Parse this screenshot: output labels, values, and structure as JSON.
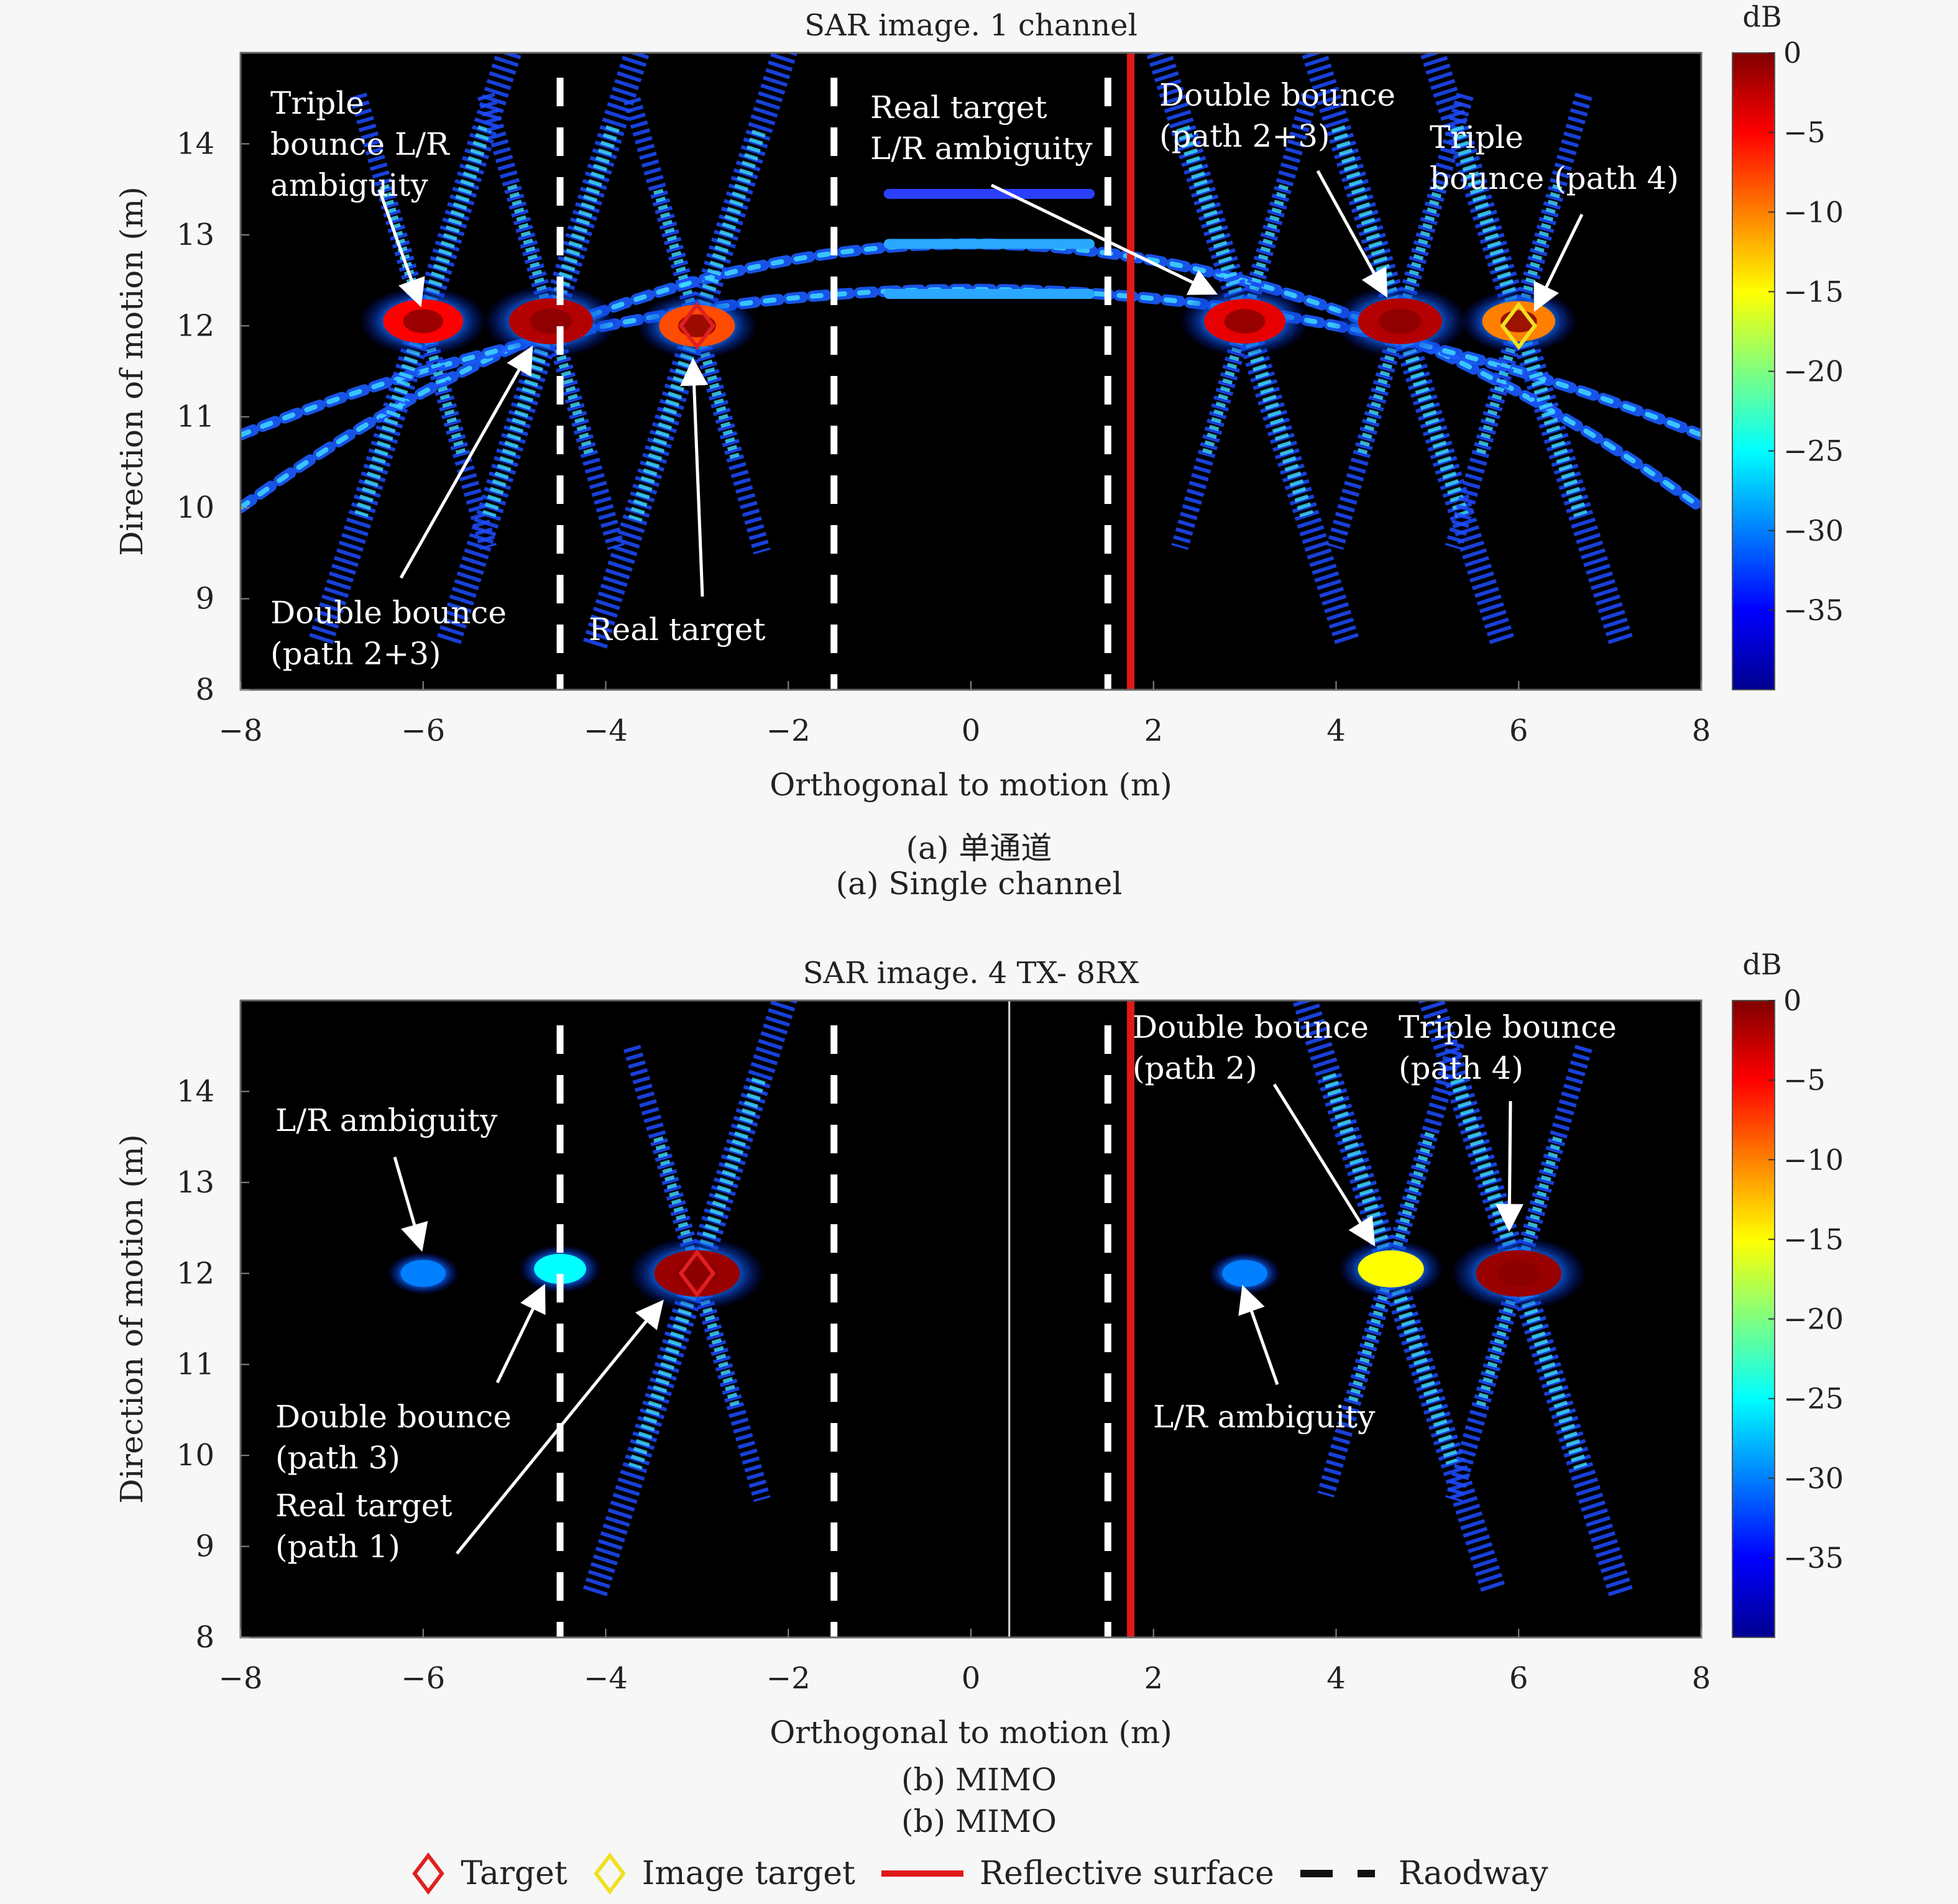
{
  "chart_data": [
    {
      "type": "heatmap",
      "title": "SAR image. 1 channel",
      "xlabel": "Orthogonal to motion (m)",
      "ylabel": "Direction of motion (m)",
      "xlim": [
        -8,
        8
      ],
      "ylim": [
        8,
        15
      ],
      "xticks": [
        "-8",
        "-6",
        "-4",
        "-2",
        "0",
        "2",
        "4",
        "6",
        "8"
      ],
      "yticks": [
        "8",
        "9",
        "10",
        "11",
        "12",
        "13",
        "14"
      ],
      "colorbar": {
        "label": "dB",
        "range": [
          -40,
          0
        ],
        "ticks": [
          "0",
          "-5",
          "-10",
          "-15",
          "-20",
          "-25",
          "-30",
          "-35"
        ]
      },
      "roadway_x": [
        -4.5,
        -1.5,
        1.5
      ],
      "reflective_surface_x": 1.75,
      "arcs": [
        {
          "x0": -8,
          "x1": 8,
          "center_x": 0,
          "y_peak": 12.9,
          "y_edge": 10.0
        },
        {
          "x0": -8,
          "x1": 8,
          "center_x": 0,
          "y_peak": 12.4,
          "y_edge": 10.8
        }
      ],
      "bright_scatterers": [
        {
          "x": -6.0,
          "y": 12.05,
          "level_db": -5
        },
        {
          "x": -4.6,
          "y": 12.05,
          "level_db": -2
        },
        {
          "x": -3.0,
          "y": 12.0,
          "level_db": -8
        },
        {
          "x": 3.0,
          "y": 12.05,
          "level_db": -4
        },
        {
          "x": 4.7,
          "y": 12.05,
          "level_db": -2
        },
        {
          "x": 6.0,
          "y": 12.05,
          "level_db": -10
        }
      ],
      "markers": [
        {
          "kind": "target",
          "x": -3.0,
          "y": 12.0
        },
        {
          "kind": "image_target",
          "x": 6.0,
          "y": 12.0
        }
      ],
      "annotations": [
        {
          "id": "triple_lr",
          "lines": [
            "Triple",
            "bounce L/R",
            "ambiguity"
          ]
        },
        {
          "id": "double_left",
          "lines": [
            "Double bounce",
            "(path 2+3)"
          ]
        },
        {
          "id": "real_target",
          "lines": [
            "Real target"
          ]
        },
        {
          "id": "real_lr",
          "lines": [
            "Real target",
            "L/R ambiguity"
          ]
        },
        {
          "id": "double_right",
          "lines": [
            "Double bounce",
            "(path 2+3)"
          ]
        },
        {
          "id": "triple_right",
          "lines": [
            "Triple",
            "bounce (path 4)"
          ]
        }
      ]
    },
    {
      "type": "heatmap",
      "title": "SAR image. 4 TX- 8RX",
      "xlabel": "Orthogonal to motion (m)",
      "ylabel": "Direction of motion (m)",
      "xlim": [
        -8,
        8
      ],
      "ylim": [
        8,
        15
      ],
      "xticks": [
        "-8",
        "-6",
        "-4",
        "-2",
        "0",
        "2",
        "4",
        "6",
        "8"
      ],
      "yticks": [
        "8",
        "9",
        "10",
        "11",
        "12",
        "13",
        "14"
      ],
      "colorbar": {
        "label": "dB",
        "range": [
          -40,
          0
        ],
        "ticks": [
          "0",
          "-5",
          "-10",
          "-15",
          "-20",
          "-25",
          "-30",
          "-35"
        ]
      },
      "roadway_x": [
        -4.5,
        -1.5,
        1.5
      ],
      "reflective_surface_x": 1.75,
      "bright_scatterers": [
        {
          "x": -6.0,
          "y": 12.0,
          "level_db": -30
        },
        {
          "x": -4.5,
          "y": 12.05,
          "level_db": -25
        },
        {
          "x": -3.0,
          "y": 12.0,
          "level_db": -1
        },
        {
          "x": 3.0,
          "y": 12.0,
          "level_db": -30
        },
        {
          "x": 4.6,
          "y": 12.05,
          "level_db": -15
        },
        {
          "x": 6.0,
          "y": 12.0,
          "level_db": -1
        }
      ],
      "markers": [
        {
          "kind": "target",
          "x": -3.0,
          "y": 12.0
        }
      ],
      "annotations": [
        {
          "id": "lr_left",
          "lines": [
            "L/R ambiguity"
          ]
        },
        {
          "id": "double_path3",
          "lines": [
            "Double bounce",
            "(path 3)"
          ]
        },
        {
          "id": "real_path1",
          "lines": [
            "Real target",
            "(path 1)"
          ]
        },
        {
          "id": "double_path2",
          "lines": [
            "Double bounce",
            "(path 2)"
          ]
        },
        {
          "id": "triple_path4",
          "lines": [
            "Triple bounce",
            "(path 4)"
          ]
        },
        {
          "id": "lr_right",
          "lines": [
            "L/R ambiguity"
          ]
        }
      ]
    }
  ],
  "captions": {
    "a_cn": "(a) 单通道",
    "a_en": "(a) Single channel",
    "b_1": "(b) MIMO",
    "b_2": "(b) MIMO"
  },
  "legend": {
    "target": "Target",
    "image_target": "Image target",
    "reflective_surface": "Reflective surface",
    "roadway": "Raodway"
  },
  "colors": {
    "target": "#e02020",
    "image_target": "#f0e020",
    "reflective_surface": "#e01818",
    "roadway": "#ffffff",
    "plot_background": "#000000"
  }
}
